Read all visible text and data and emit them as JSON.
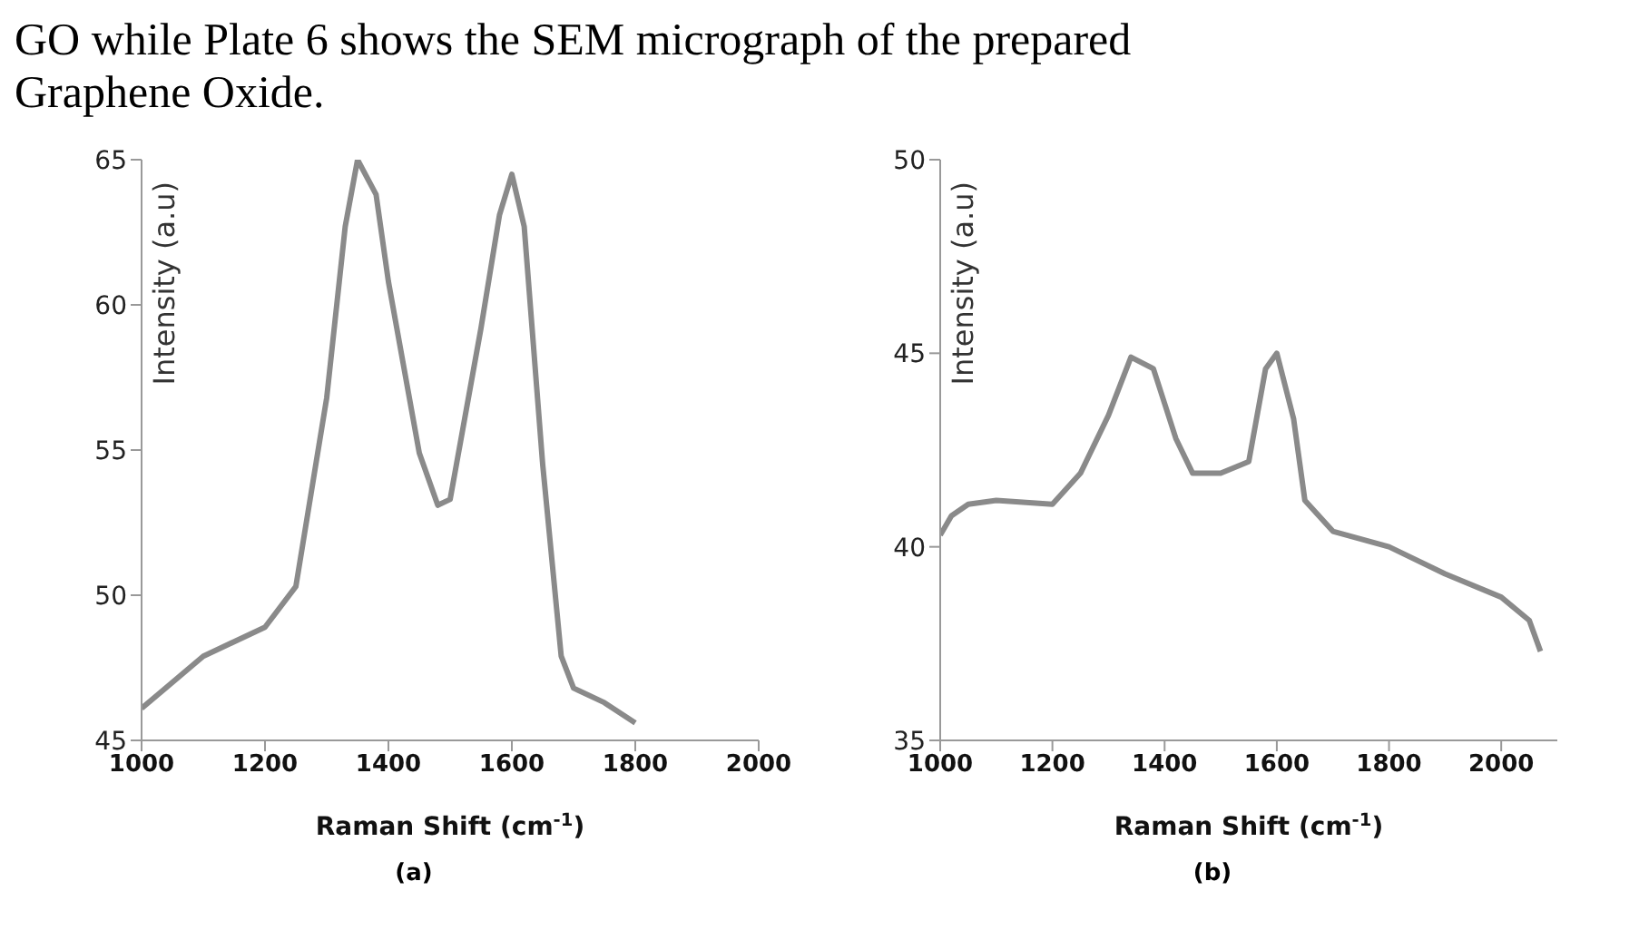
{
  "chart_data": [
    {
      "type": "line",
      "title": "GO while Plate 6 shows the SEM micrograph of the prepared Graphene Oxide.",
      "xlabel": "Raman Shift (cm$^{-1}$)",
      "ylabel": "Intensity (a.u)",
      "annotations": [
        "(a)"
      ],
      "x": [
        1000,
        1100,
        1200,
        1250,
        1300,
        1330,
        1350,
        1380,
        1400,
        1450,
        1480,
        1500,
        1550,
        1580,
        1600,
        1620,
        1650,
        1680,
        1700,
        1750,
        1800
      ],
      "series": [
        {
          "color": "#8a8a8a",
          "values": [
            46.1,
            47.9,
            48.9,
            50.3,
            56.8,
            62.7,
            65,
            63.8,
            60.8,
            54.9,
            53.1,
            53.3,
            59.2,
            63.1,
            64.5,
            62.7,
            54.5,
            47.9,
            46.8,
            46.3,
            45.6
          ]
        }
      ],
      "xlim": [
        1000,
        2000
      ],
      "xticks": [
        1000,
        1200,
        1400,
        1600,
        1800,
        2000
      ],
      "ylim": [
        45,
        65
      ],
      "yticks": [
        45,
        50,
        55,
        60,
        65
      ],
      "grid": false,
      "legend": false
    },
    {
      "type": "line",
      "xlabel": "Raman Shift (cm$^{-1}$)",
      "ylabel": "Intensity (a.u)",
      "annotations": [
        "(b)"
      ],
      "x": [
        1000,
        1020,
        1050,
        1100,
        1200,
        1250,
        1300,
        1340,
        1380,
        1420,
        1450,
        1500,
        1550,
        1580,
        1600,
        1630,
        1650,
        1700,
        1800,
        1900,
        2000,
        2050,
        2070
      ],
      "series": [
        {
          "color": "#8a8a8a",
          "values": [
            40.3,
            40.8,
            41.1,
            41.2,
            41.1,
            41.9,
            43.4,
            44.9,
            44.6,
            42.8,
            41.9,
            41.9,
            42.2,
            44.6,
            45,
            43.3,
            41.2,
            40.4,
            40,
            39.3,
            38.7,
            38.1,
            37.3
          ]
        }
      ],
      "xlim": [
        1000,
        2100
      ],
      "xticks": [
        1000,
        1200,
        1400,
        1600,
        1800,
        2000
      ],
      "ylim": [
        35,
        50
      ],
      "yticks": [
        35,
        40,
        45,
        50
      ],
      "grid": false,
      "legend": false
    }
  ]
}
